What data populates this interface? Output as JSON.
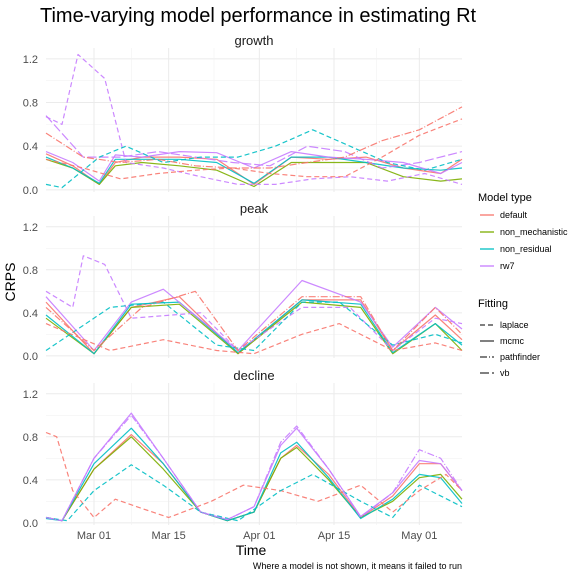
{
  "chart_data": {
    "type": "line",
    "title": "Time-varying model performance in estimating Rt",
    "xlabel": "Time",
    "ylabel": "CRPS",
    "caption": "Where a model is not shown, it means it failed to run",
    "x_ticks": [
      "Mar 01",
      "Mar 15",
      "Apr 01",
      "Apr 15",
      "May 01"
    ],
    "x_range": [
      "2020-02-21",
      "2020-05-09"
    ],
    "y_range": [
      -0.02,
      1.3
    ],
    "y_ticks": [
      0.0,
      0.4,
      0.8,
      1.2
    ],
    "y_tick_labels": [
      "0.0",
      "0.4",
      "0.8",
      "1.2"
    ],
    "grid": true,
    "legend_position": "right",
    "colors": {
      "default": "#F8766D",
      "non_mechanistic": "#7CAE00",
      "non_residual": "#00BFC4",
      "rw7": "#C77CFF"
    },
    "legend": {
      "model_type": {
        "title": "Model type",
        "entries": [
          "default",
          "non_mechanistic",
          "non_residual",
          "rw7"
        ]
      },
      "fitting": {
        "title": "Fitting",
        "entries": [
          "laplace",
          "mcmc",
          "pathfinder",
          "vb"
        ]
      }
    },
    "panels": [
      {
        "title": "growth",
        "series": [
          {
            "model": "default",
            "fitting": "mcmc",
            "x": [
              "2020-02-21",
              "2020-02-26",
              "2020-03-02",
              "2020-03-05",
              "2020-03-10",
              "2020-03-17",
              "2020-03-24",
              "2020-03-31",
              "2020-04-07",
              "2020-04-14",
              "2020-04-21",
              "2020-04-28",
              "2020-05-05",
              "2020-05-09"
            ],
            "y": [
              0.33,
              0.22,
              0.05,
              0.25,
              0.3,
              0.3,
              0.28,
              0.05,
              0.3,
              0.28,
              0.3,
              0.2,
              0.15,
              0.28
            ]
          },
          {
            "model": "non_mechanistic",
            "fitting": "mcmc",
            "x": [
              "2020-02-21",
              "2020-02-26",
              "2020-03-02",
              "2020-03-05",
              "2020-03-10",
              "2020-03-17",
              "2020-03-24",
              "2020-03-31",
              "2020-04-07",
              "2020-04-14",
              "2020-04-21",
              "2020-04-28",
              "2020-05-05",
              "2020-05-09"
            ],
            "y": [
              0.28,
              0.2,
              0.05,
              0.22,
              0.25,
              0.22,
              0.18,
              0.03,
              0.25,
              0.25,
              0.25,
              0.12,
              0.08,
              0.1
            ]
          },
          {
            "model": "non_residual",
            "fitting": "mcmc",
            "x": [
              "2020-02-21",
              "2020-02-26",
              "2020-03-02",
              "2020-03-05",
              "2020-03-10",
              "2020-03-17",
              "2020-03-24",
              "2020-03-31",
              "2020-04-07",
              "2020-04-14",
              "2020-04-21",
              "2020-04-28",
              "2020-05-05",
              "2020-05-09"
            ],
            "y": [
              0.3,
              0.2,
              0.06,
              0.28,
              0.28,
              0.28,
              0.25,
              0.06,
              0.3,
              0.3,
              0.25,
              0.2,
              0.18,
              0.2
            ]
          },
          {
            "model": "rw7",
            "fitting": "mcmc",
            "x": [
              "2020-02-21",
              "2020-02-26",
              "2020-03-02",
              "2020-03-05",
              "2020-03-10",
              "2020-03-17",
              "2020-03-24",
              "2020-03-31",
              "2020-04-07",
              "2020-04-14",
              "2020-04-21",
              "2020-04-28",
              "2020-05-05",
              "2020-05-09"
            ],
            "y": [
              0.35,
              0.25,
              0.08,
              0.32,
              0.3,
              0.35,
              0.34,
              0.2,
              0.35,
              0.3,
              0.28,
              0.25,
              0.15,
              0.25
            ]
          },
          {
            "model": "rw7",
            "fitting": "laplace",
            "x": [
              "2020-02-21",
              "2020-02-24",
              "2020-02-27",
              "2020-03-03",
              "2020-03-07",
              "2020-03-14",
              "2020-03-21",
              "2020-03-28",
              "2020-04-04",
              "2020-04-11",
              "2020-04-18",
              "2020-04-25",
              "2020-05-02",
              "2020-05-09"
            ],
            "y": [
              0.67,
              0.6,
              1.24,
              1.02,
              0.25,
              0.2,
              0.12,
              0.05,
              0.05,
              0.1,
              0.12,
              0.08,
              0.15,
              0.05
            ]
          },
          {
            "model": "rw7",
            "fitting": "vb",
            "x": [
              "2020-02-21",
              "2020-02-28",
              "2020-03-06",
              "2020-03-13",
              "2020-03-20",
              "2020-03-27",
              "2020-04-03",
              "2020-04-10",
              "2020-04-17",
              "2020-04-24",
              "2020-05-01",
              "2020-05-09"
            ],
            "y": [
              0.68,
              0.3,
              0.3,
              0.35,
              0.3,
              0.25,
              0.22,
              0.4,
              0.35,
              0.2,
              0.25,
              0.35
            ]
          },
          {
            "model": "non_residual",
            "fitting": "laplace",
            "x": [
              "2020-02-21",
              "2020-02-24",
              "2020-03-02",
              "2020-03-07",
              "2020-03-14",
              "2020-03-21",
              "2020-03-28",
              "2020-04-04",
              "2020-04-11",
              "2020-04-18",
              "2020-04-25",
              "2020-05-02",
              "2020-05-09"
            ],
            "y": [
              0.05,
              0.02,
              0.3,
              0.4,
              0.25,
              0.3,
              0.3,
              0.4,
              0.55,
              0.4,
              0.25,
              0.18,
              0.28
            ]
          },
          {
            "model": "default",
            "fitting": "pathfinder",
            "x": [
              "2020-02-21",
              "2020-02-28",
              "2020-03-06",
              "2020-03-13",
              "2020-03-20",
              "2020-03-27",
              "2020-04-03",
              "2020-04-10",
              "2020-04-17",
              "2020-04-24",
              "2020-05-01",
              "2020-05-09"
            ],
            "y": [
              0.52,
              0.3,
              0.25,
              0.28,
              0.22,
              0.2,
              0.2,
              0.25,
              0.3,
              0.45,
              0.55,
              0.76
            ]
          },
          {
            "model": "default",
            "fitting": "laplace",
            "x": [
              "2020-02-21",
              "2020-02-28",
              "2020-03-06",
              "2020-03-13",
              "2020-03-20",
              "2020-03-27",
              "2020-04-03",
              "2020-04-10",
              "2020-04-17",
              "2020-04-24",
              "2020-05-01",
              "2020-05-09"
            ],
            "y": [
              0.28,
              0.2,
              0.1,
              0.15,
              0.18,
              0.2,
              0.15,
              0.12,
              0.12,
              0.3,
              0.5,
              0.65
            ]
          }
        ]
      },
      {
        "title": "peak",
        "series": [
          {
            "model": "default",
            "fitting": "mcmc",
            "x": [
              "2020-02-21",
              "2020-03-01",
              "2020-03-08",
              "2020-03-17",
              "2020-03-28",
              "2020-04-09",
              "2020-04-20",
              "2020-04-26",
              "2020-05-04",
              "2020-05-09"
            ],
            "y": [
              0.5,
              0.02,
              0.45,
              0.55,
              0.02,
              0.52,
              0.52,
              0.05,
              0.38,
              0.15
            ]
          },
          {
            "model": "non_mechanistic",
            "fitting": "mcmc",
            "x": [
              "2020-02-21",
              "2020-03-01",
              "2020-03-08",
              "2020-03-17",
              "2020-03-28",
              "2020-04-09",
              "2020-04-20",
              "2020-04-26",
              "2020-05-04",
              "2020-05-09"
            ],
            "y": [
              0.35,
              0.02,
              0.45,
              0.48,
              0.02,
              0.5,
              0.45,
              0.02,
              0.3,
              0.05
            ]
          },
          {
            "model": "non_residual",
            "fitting": "mcmc",
            "x": [
              "2020-02-21",
              "2020-03-01",
              "2020-03-08",
              "2020-03-17",
              "2020-03-28",
              "2020-04-09",
              "2020-04-20",
              "2020-04-26",
              "2020-05-04",
              "2020-05-09"
            ],
            "y": [
              0.38,
              0.02,
              0.48,
              0.5,
              0.03,
              0.52,
              0.48,
              0.03,
              0.3,
              0.1
            ]
          },
          {
            "model": "rw7",
            "fitting": "mcmc",
            "x": [
              "2020-02-21",
              "2020-03-01",
              "2020-03-08",
              "2020-03-14",
              "2020-03-28",
              "2020-04-09",
              "2020-04-20",
              "2020-04-26",
              "2020-05-04",
              "2020-05-09"
            ],
            "y": [
              0.55,
              0.05,
              0.5,
              0.62,
              0.05,
              0.7,
              0.5,
              0.08,
              0.45,
              0.25
            ]
          },
          {
            "model": "rw7",
            "fitting": "laplace",
            "x": [
              "2020-02-21",
              "2020-02-26",
              "2020-02-28",
              "2020-03-03",
              "2020-03-08",
              "2020-03-21",
              "2020-03-28",
              "2020-04-09",
              "2020-04-18",
              "2020-04-26",
              "2020-05-04",
              "2020-05-09"
            ],
            "y": [
              0.6,
              0.45,
              0.93,
              0.85,
              0.35,
              0.4,
              0.05,
              0.45,
              0.45,
              0.05,
              0.35,
              0.3
            ]
          },
          {
            "model": "non_residual",
            "fitting": "laplace",
            "x": [
              "2020-02-21",
              "2020-03-04",
              "2020-03-14",
              "2020-03-24",
              "2020-03-31",
              "2020-04-09",
              "2020-04-16",
              "2020-04-26",
              "2020-05-04",
              "2020-05-09"
            ],
            "y": [
              0.05,
              0.45,
              0.5,
              0.1,
              0.05,
              0.5,
              0.5,
              0.1,
              0.2,
              0.12
            ]
          },
          {
            "model": "default",
            "fitting": "laplace",
            "x": [
              "2020-02-21",
              "2020-03-04",
              "2020-03-14",
              "2020-03-24",
              "2020-03-31",
              "2020-04-09",
              "2020-04-16",
              "2020-04-26",
              "2020-05-04",
              "2020-05-09"
            ],
            "y": [
              0.3,
              0.05,
              0.15,
              0.05,
              0.02,
              0.2,
              0.3,
              0.05,
              0.12,
              0.05
            ]
          },
          {
            "model": "default",
            "fitting": "pathfinder",
            "x": [
              "2020-02-21",
              "2020-03-01",
              "2020-03-10",
              "2020-03-20",
              "2020-03-28",
              "2020-04-09",
              "2020-04-20",
              "2020-04-26",
              "2020-05-04",
              "2020-05-09"
            ],
            "y": [
              0.45,
              0.05,
              0.45,
              0.6,
              0.05,
              0.55,
              0.55,
              0.05,
              0.45,
              0.2
            ]
          }
        ]
      },
      {
        "title": "decline",
        "series": [
          {
            "model": "default",
            "fitting": "mcmc",
            "x": [
              "2020-02-21",
              "2020-02-24",
              "2020-03-01",
              "2020-03-08",
              "2020-03-14",
              "2020-03-21",
              "2020-03-26",
              "2020-03-31",
              "2020-04-05",
              "2020-04-08",
              "2020-04-14",
              "2020-04-20",
              "2020-04-26",
              "2020-05-01",
              "2020-05-05",
              "2020-05-09"
            ],
            "y": [
              0.05,
              0.02,
              0.5,
              0.82,
              0.55,
              0.1,
              0.02,
              0.1,
              0.6,
              0.72,
              0.45,
              0.05,
              0.25,
              0.55,
              0.55,
              0.3
            ]
          },
          {
            "model": "non_mechanistic",
            "fitting": "mcmc",
            "x": [
              "2020-02-21",
              "2020-02-24",
              "2020-03-01",
              "2020-03-08",
              "2020-03-14",
              "2020-03-21",
              "2020-03-26",
              "2020-03-31",
              "2020-04-05",
              "2020-04-08",
              "2020-04-14",
              "2020-04-20",
              "2020-04-26",
              "2020-05-01",
              "2020-05-05",
              "2020-05-09"
            ],
            "y": [
              0.05,
              0.02,
              0.5,
              0.8,
              0.5,
              0.1,
              0.02,
              0.1,
              0.6,
              0.7,
              0.4,
              0.05,
              0.2,
              0.42,
              0.45,
              0.22
            ]
          },
          {
            "model": "non_residual",
            "fitting": "mcmc",
            "x": [
              "2020-02-21",
              "2020-02-24",
              "2020-03-01",
              "2020-03-08",
              "2020-03-14",
              "2020-03-21",
              "2020-03-26",
              "2020-03-31",
              "2020-04-05",
              "2020-04-08",
              "2020-04-14",
              "2020-04-20",
              "2020-04-26",
              "2020-05-01",
              "2020-05-05",
              "2020-05-09"
            ],
            "y": [
              0.04,
              0.02,
              0.55,
              0.88,
              0.55,
              0.1,
              0.02,
              0.1,
              0.65,
              0.75,
              0.42,
              0.04,
              0.22,
              0.45,
              0.42,
              0.18
            ]
          },
          {
            "model": "rw7",
            "fitting": "mcmc",
            "x": [
              "2020-02-21",
              "2020-02-24",
              "2020-03-01",
              "2020-03-08",
              "2020-03-14",
              "2020-03-21",
              "2020-03-26",
              "2020-03-31",
              "2020-04-05",
              "2020-04-08",
              "2020-04-14",
              "2020-04-20",
              "2020-04-26",
              "2020-05-01",
              "2020-05-05",
              "2020-05-09"
            ],
            "y": [
              0.05,
              0.02,
              0.6,
              1.02,
              0.6,
              0.1,
              0.03,
              0.15,
              0.72,
              0.88,
              0.5,
              0.06,
              0.28,
              0.58,
              0.55,
              0.3
            ]
          },
          {
            "model": "default",
            "fitting": "laplace",
            "x": [
              "2020-02-21",
              "2020-02-23",
              "2020-02-26",
              "2020-03-01",
              "2020-03-05",
              "2020-03-09",
              "2020-03-15",
              "2020-03-23",
              "2020-03-29",
              "2020-04-05",
              "2020-04-12",
              "2020-04-20",
              "2020-04-26",
              "2020-05-01",
              "2020-05-06",
              "2020-05-09"
            ],
            "y": [
              0.84,
              0.8,
              0.3,
              0.05,
              0.22,
              0.15,
              0.05,
              0.2,
              0.35,
              0.3,
              0.2,
              0.35,
              0.1,
              0.3,
              0.45,
              0.3
            ]
          },
          {
            "model": "non_residual",
            "fitting": "laplace",
            "x": [
              "2020-02-21",
              "2020-02-25",
              "2020-03-01",
              "2020-03-08",
              "2020-03-14",
              "2020-03-21",
              "2020-03-28",
              "2020-04-05",
              "2020-04-11",
              "2020-04-20",
              "2020-04-26",
              "2020-05-01",
              "2020-05-09"
            ],
            "y": [
              0.05,
              0.02,
              0.3,
              0.54,
              0.35,
              0.1,
              0.02,
              0.3,
              0.45,
              0.2,
              0.05,
              0.35,
              0.15
            ]
          },
          {
            "model": "rw7",
            "fitting": "pathfinder",
            "x": [
              "2020-02-21",
              "2020-02-24",
              "2020-03-01",
              "2020-03-08",
              "2020-03-14",
              "2020-03-21",
              "2020-03-26",
              "2020-03-31",
              "2020-04-05",
              "2020-04-08",
              "2020-04-14",
              "2020-04-20",
              "2020-04-26",
              "2020-05-01",
              "2020-05-05",
              "2020-05-09"
            ],
            "y": [
              0.05,
              0.02,
              0.6,
              1.0,
              0.6,
              0.1,
              0.03,
              0.15,
              0.75,
              0.9,
              0.5,
              0.05,
              0.28,
              0.68,
              0.6,
              0.3
            ]
          }
        ]
      }
    ]
  }
}
